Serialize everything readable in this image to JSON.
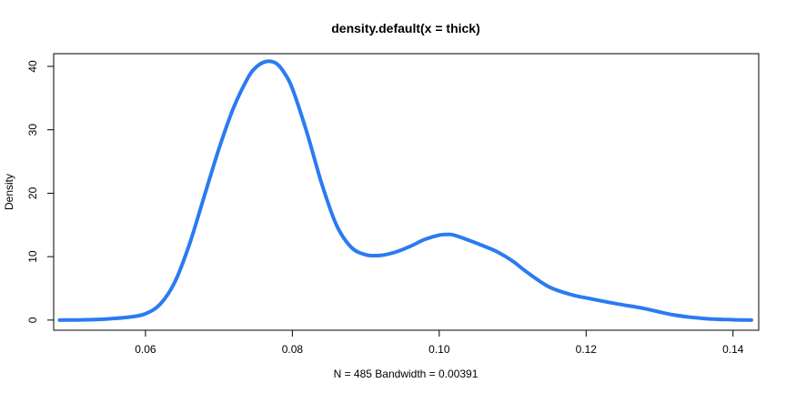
{
  "chart_data": {
    "type": "line",
    "title": "density.default(x = thick)",
    "xlabel": "N = 485   Bandwidth = 0.00391",
    "ylabel": "Density",
    "xlim": [
      0.0475,
      0.1435
    ],
    "ylim": [
      -1.6,
      42.0
    ],
    "xticks": [
      0.06,
      0.08,
      0.1,
      0.12,
      0.14
    ],
    "xtick_labels": [
      "0.06",
      "0.08",
      "0.10",
      "0.12",
      "0.14"
    ],
    "yticks": [
      0,
      10,
      20,
      30,
      40
    ],
    "ytick_labels": [
      "0",
      "10",
      "20",
      "30",
      "40"
    ],
    "grid": false,
    "series": [
      {
        "color": "#2b7bf0",
        "x": [
          0.0483,
          0.052,
          0.055,
          0.058,
          0.06,
          0.062,
          0.064,
          0.066,
          0.068,
          0.07,
          0.072,
          0.074,
          0.075,
          0.076,
          0.077,
          0.078,
          0.079,
          0.08,
          0.082,
          0.084,
          0.086,
          0.088,
          0.09,
          0.092,
          0.094,
          0.096,
          0.098,
          0.1,
          0.101,
          0.102,
          0.104,
          0.106,
          0.108,
          0.11,
          0.112,
          0.115,
          0.118,
          0.12,
          0.124,
          0.128,
          0.132,
          0.136,
          0.14,
          0.1425
        ],
        "y": [
          0.0,
          0.05,
          0.2,
          0.5,
          1.0,
          2.5,
          6.0,
          12.0,
          19.5,
          27.0,
          33.5,
          38.3,
          39.8,
          40.6,
          40.8,
          40.3,
          38.8,
          36.5,
          29.5,
          21.5,
          15.0,
          11.5,
          10.3,
          10.2,
          10.7,
          11.6,
          12.7,
          13.4,
          13.5,
          13.4,
          12.6,
          11.7,
          10.7,
          9.3,
          7.5,
          5.2,
          4.0,
          3.5,
          2.6,
          1.8,
          0.8,
          0.25,
          0.05,
          0.0
        ]
      }
    ]
  }
}
